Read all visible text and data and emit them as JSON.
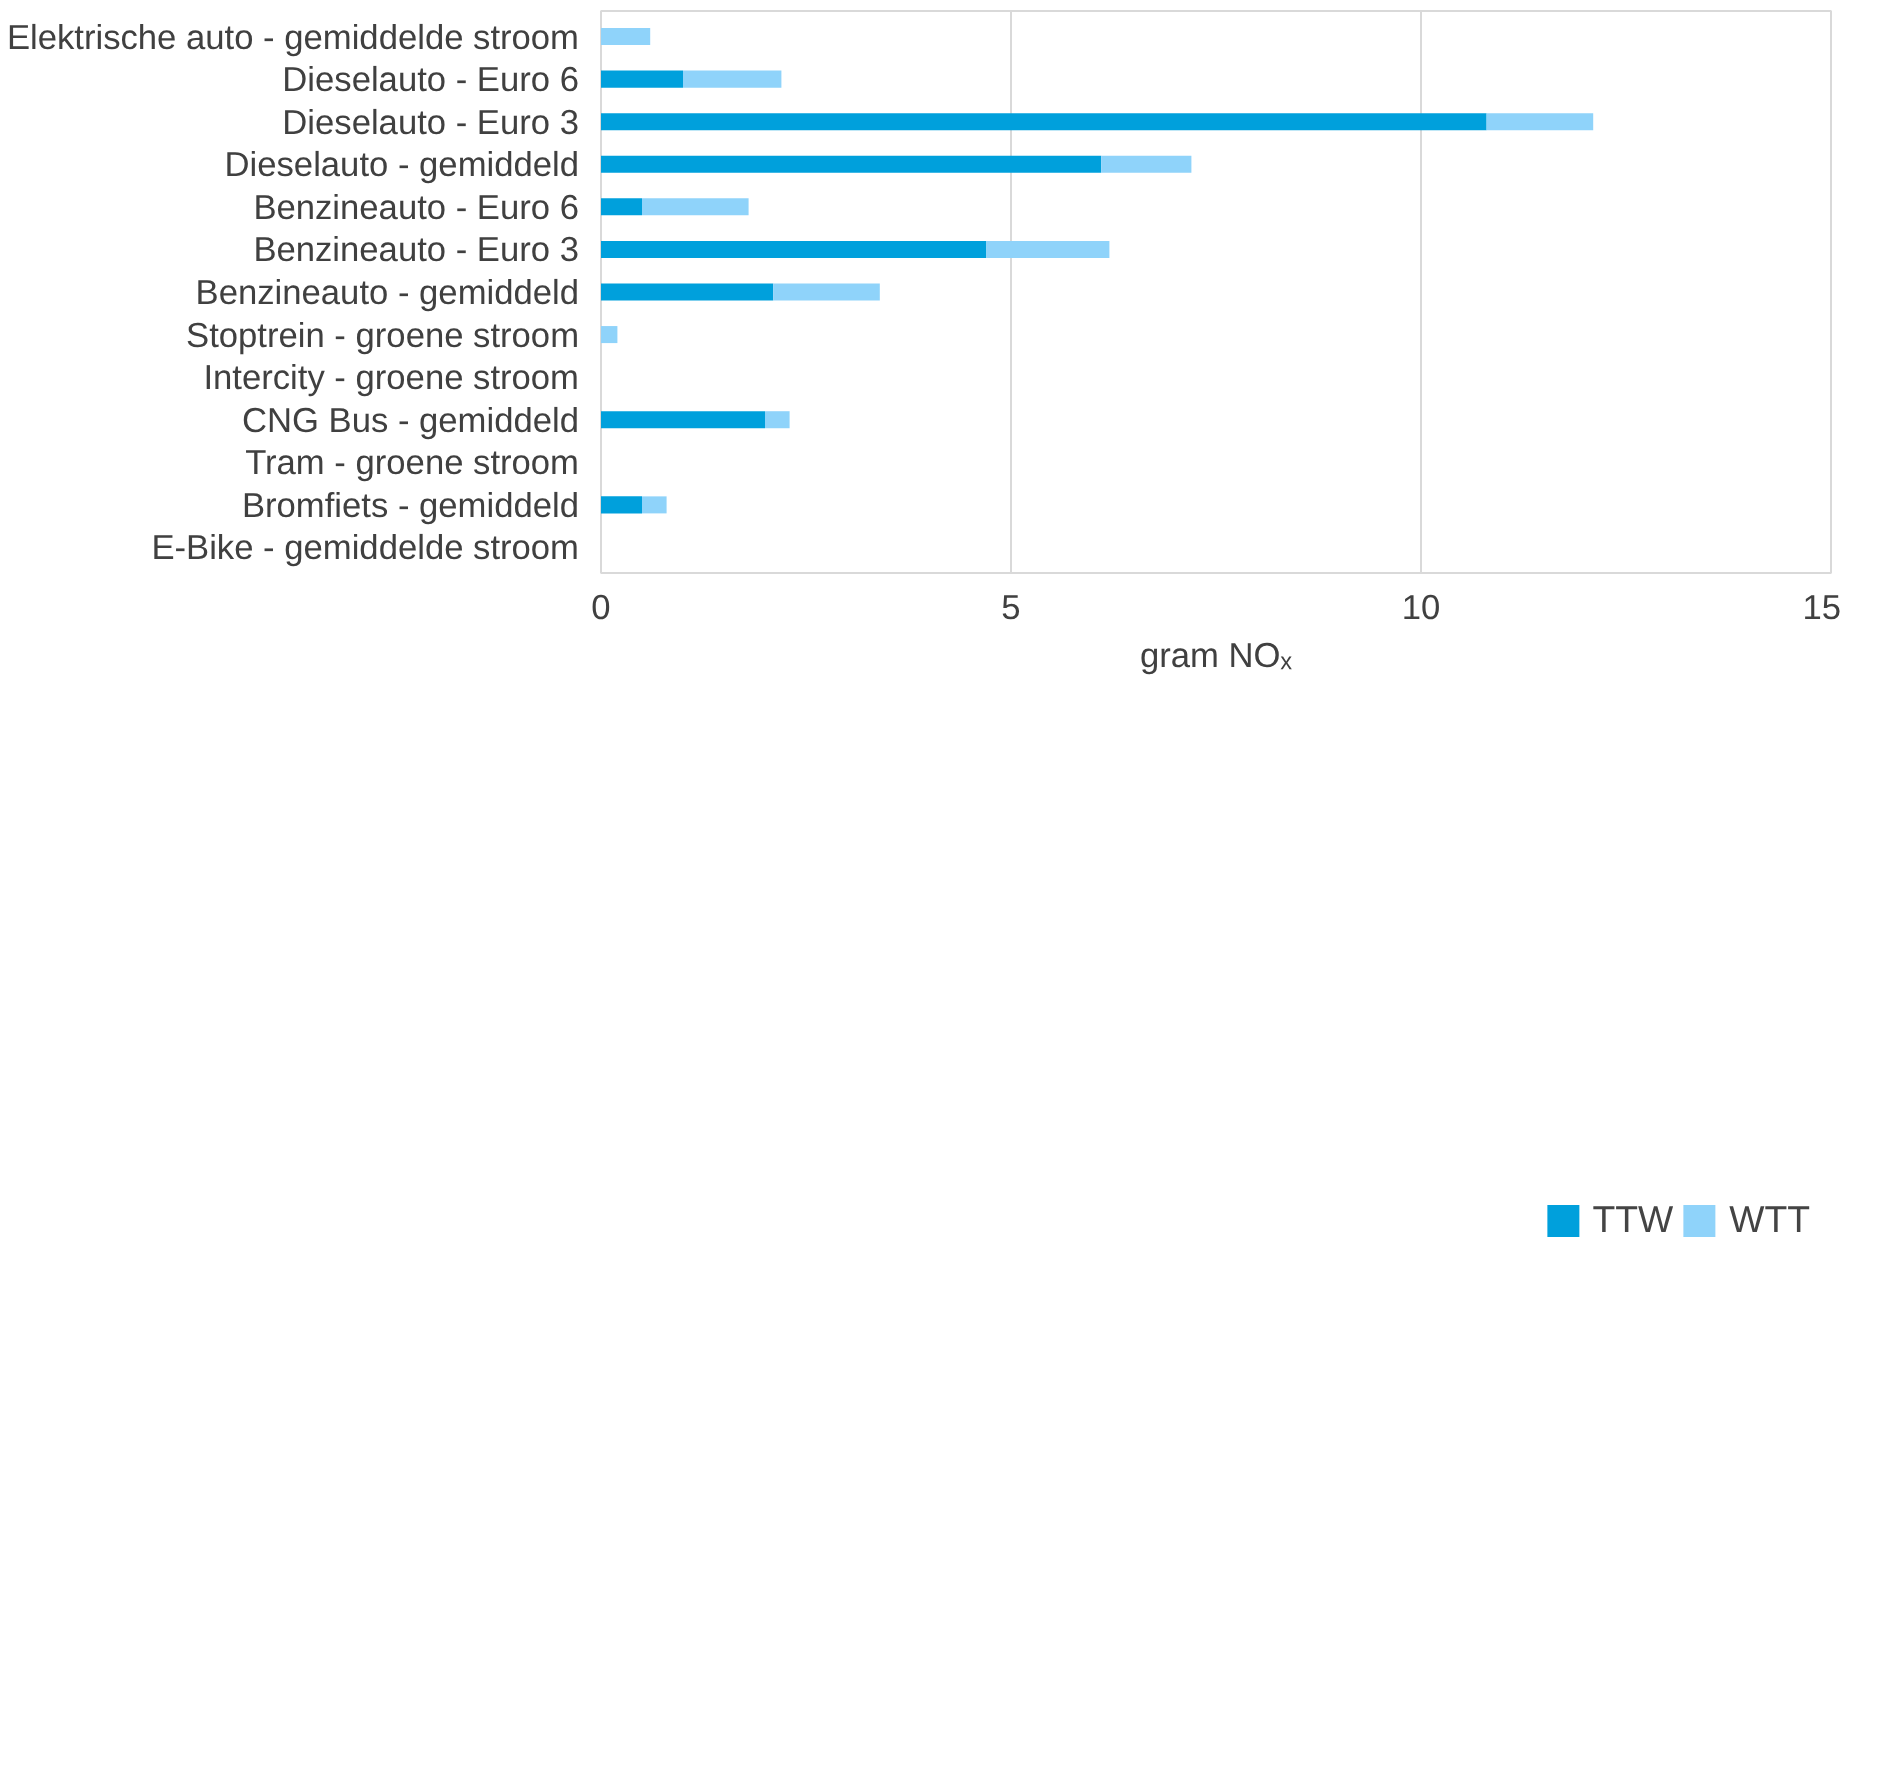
{
  "chart_data": {
    "type": "bar",
    "orientation": "horizontal",
    "stacked": true,
    "categories": [
      "Elektrische auto - gemiddelde stroom",
      "Dieselauto - Euro 6",
      "Dieselauto - Euro 3",
      "Dieselauto - gemiddeld",
      "Benzineauto - Euro 6",
      "Benzineauto - Euro 3",
      "Benzineauto - gemiddeld",
      "Stoptrein - groene stroom",
      "Intercity - groene stroom",
      "CNG Bus - gemiddeld",
      "Tram - groene stroom",
      "Bromfiets - gemiddeld",
      "E-Bike - gemiddelde stroom"
    ],
    "series": [
      {
        "name": "TTW",
        "color": "#00a0dc",
        "values": [
          0,
          1.0,
          10.8,
          6.1,
          0.5,
          4.7,
          2.1,
          0,
          0,
          2.0,
          0,
          0.5,
          0
        ]
      },
      {
        "name": "WTT",
        "color": "#8fd3fa",
        "values": [
          0.6,
          1.2,
          1.3,
          1.1,
          1.3,
          1.5,
          1.3,
          0.2,
          0,
          0.3,
          0,
          0.3,
          0
        ]
      }
    ],
    "xlabel": "gram NOₓ",
    "xlim": [
      0,
      15
    ],
    "xticks": [
      0,
      5,
      10,
      15
    ],
    "grid": "x",
    "legend": "bottom"
  }
}
